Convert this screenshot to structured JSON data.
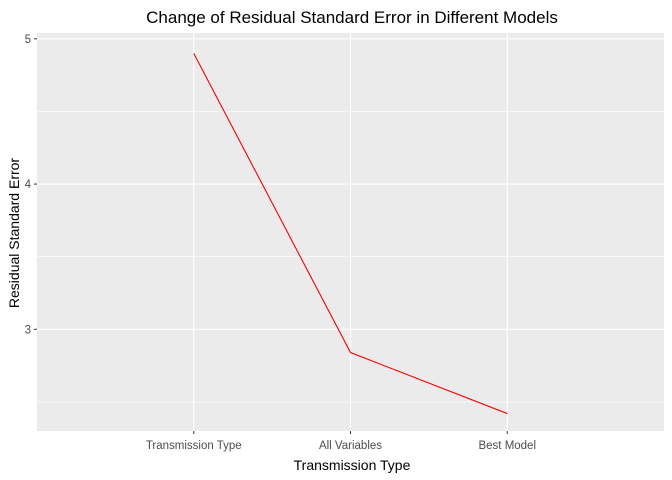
{
  "chart_data": {
    "type": "line",
    "title": "Change of Residual Standard Error in Different Models",
    "xlabel": "Transmission Type",
    "ylabel": "Residual Standard Error",
    "categories": [
      "Transmission Type",
      "All Variables",
      "Best Model"
    ],
    "series": [
      {
        "values": [
          4.9,
          2.84,
          2.42
        ]
      }
    ],
    "ylim": [
      2.3,
      5.04
    ],
    "yticks": [
      3,
      4,
      5
    ],
    "ytick_labels": [
      "3",
      "4",
      "5"
    ],
    "grid": true,
    "colors": {
      "line": "#ff0000",
      "panel": "#ebebeb",
      "grid": "#ffffff"
    }
  }
}
